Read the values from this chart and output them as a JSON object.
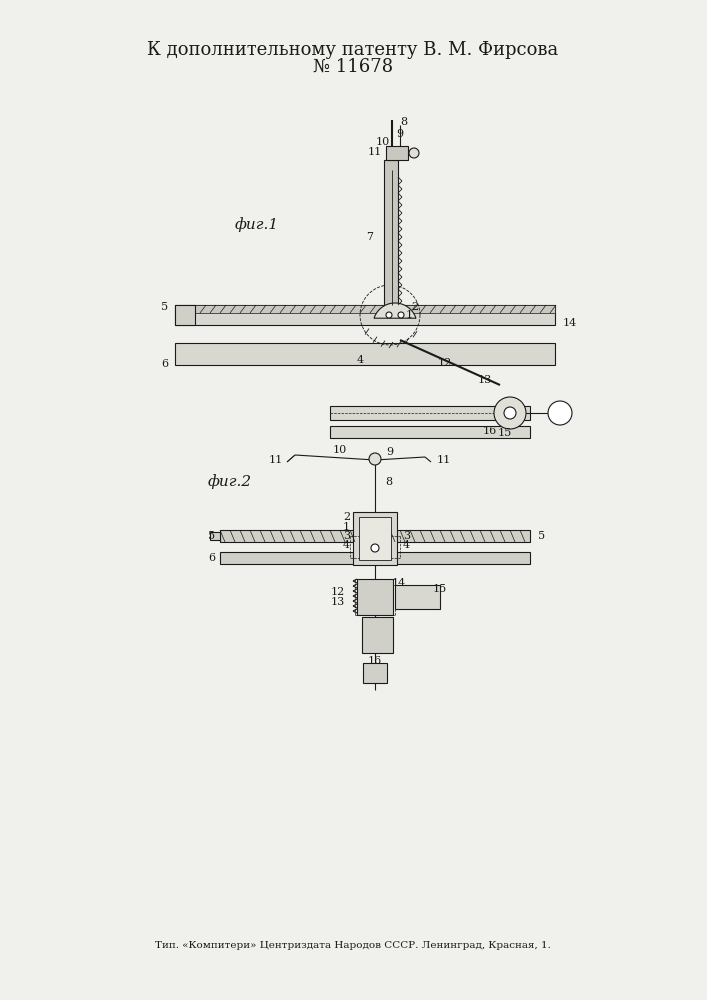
{
  "title_line1": "К дополнительному патенту В. М. Фирсова",
  "title_line2": "№ 11678",
  "footer": "Тип. «Компитери» Центриздата Народов СССР. Ленинград, Красная, 1.",
  "fig1_label": "фиг.1",
  "fig2_label": "фиг.2",
  "bg_color": "#f0f0ec",
  "line_color": "#1a1a1a",
  "title_fontsize": 13,
  "footer_fontsize": 7.5,
  "fig_label_fontsize": 11
}
